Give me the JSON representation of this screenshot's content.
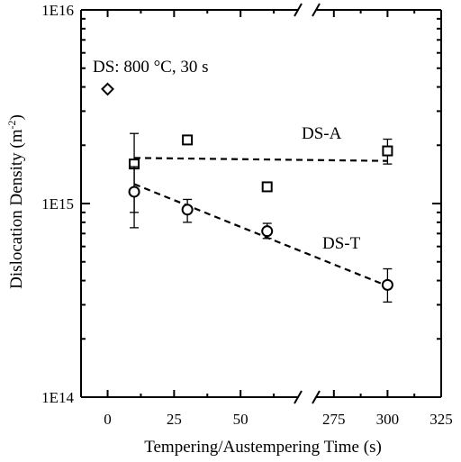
{
  "chart_data": {
    "type": "scatter",
    "title": "",
    "xlabel": "Tempering/Austempering Time (s)",
    "ylabel_main": "Dislocation Density (m",
    "ylabel_sup": "-2",
    "ylabel_close": ")",
    "y_scale": "log",
    "ylim": [
      100000000000000.0,
      1e+16
    ],
    "y_ticks": [
      {
        "value": 100000000000000.0,
        "label": "1E14"
      },
      {
        "value": 1000000000000000.0,
        "label": "1E15"
      },
      {
        "value": 1e+16,
        "label": "1E16"
      }
    ],
    "x_axis_break": {
      "left_range": [
        -10,
        75
      ],
      "right_range": [
        262.5,
        325
      ]
    },
    "x_ticks": [
      {
        "value": 0,
        "label": "0"
      },
      {
        "value": 25,
        "label": "25"
      },
      {
        "value": 50,
        "label": "50"
      },
      {
        "value": 275,
        "label": "275"
      },
      {
        "value": 300,
        "label": "300"
      },
      {
        "value": 325,
        "label": "325"
      }
    ],
    "series": [
      {
        "name": "DS: 800 °C, 30 s",
        "marker": "diamond",
        "points": [
          {
            "x": 0,
            "y": 3900000000000000.0
          }
        ]
      },
      {
        "name": "DS-A",
        "marker": "square",
        "trend": [
          {
            "x": 10,
            "y": 1720000000000000.0
          },
          {
            "x": 300,
            "y": 1660000000000000.0
          }
        ],
        "points": [
          {
            "x": 10,
            "y": 1600000000000000.0,
            "err_low": 900000000000000.0,
            "err_high": 2300000000000000.0
          },
          {
            "x": 30,
            "y": 2130000000000000.0,
            "err_low": 2030000000000000.0,
            "err_high": 2230000000000000.0
          },
          {
            "x": 60,
            "y": 1220000000000000.0,
            "err_low": 1190000000000000.0,
            "err_high": 1250000000000000.0
          },
          {
            "x": 300,
            "y": 1870000000000000.0,
            "err_low": 1600000000000000.0,
            "err_high": 2150000000000000.0
          }
        ]
      },
      {
        "name": "DS-T",
        "marker": "circle",
        "trend": [
          {
            "x": 10,
            "y": 1260000000000000.0
          },
          {
            "x": 300,
            "y": 375000000000000.0
          }
        ],
        "points": [
          {
            "x": 10,
            "y": 1150000000000000.0,
            "err_low": 750000000000000.0,
            "err_high": 1550000000000000.0
          },
          {
            "x": 30,
            "y": 930000000000000.0,
            "err_low": 800000000000000.0,
            "err_high": 1050000000000000.0
          },
          {
            "x": 60,
            "y": 720000000000000.0,
            "err_low": 660000000000000.0,
            "err_high": 790000000000000.0
          },
          {
            "x": 300,
            "y": 380000000000000.0,
            "err_low": 310000000000000.0,
            "err_high": 460000000000000.0
          }
        ]
      }
    ],
    "annotations": [
      {
        "text": "DS: 800 °C, 30 s",
        "anchor": "diamond"
      },
      {
        "text": "DS-A",
        "anchor": "DS-A"
      },
      {
        "text": "DS-T",
        "anchor": "DS-T"
      }
    ]
  }
}
